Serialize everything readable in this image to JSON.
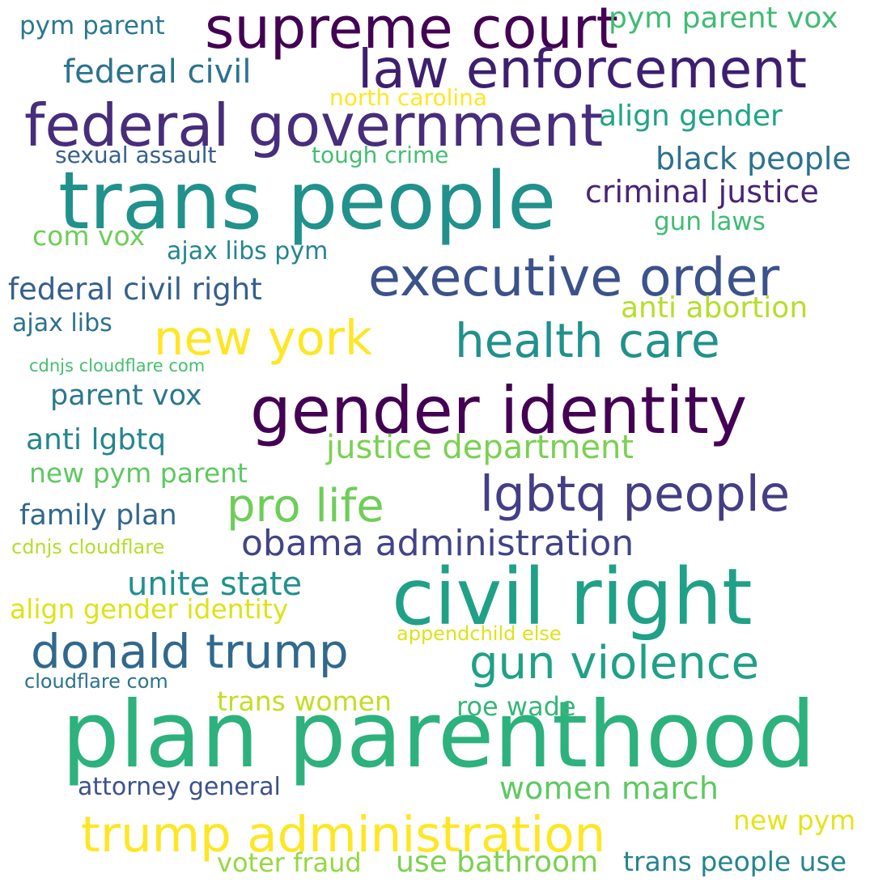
{
  "words": [
    {
      "text": "plan parenthood",
      "color": "#2db27d"
    },
    {
      "text": "trans people",
      "color": "#21918c"
    },
    {
      "text": "civil right",
      "color": "#1fa187"
    },
    {
      "text": "gender identity",
      "color": "#440154"
    },
    {
      "text": "federal government",
      "color": "#472d7b"
    },
    {
      "text": "supreme court",
      "color": "#440154"
    },
    {
      "text": "law enforcement",
      "color": "#3e1f6f"
    },
    {
      "text": "executive order",
      "color": "#3b528b"
    },
    {
      "text": "trump administration",
      "color": "#fde725"
    },
    {
      "text": "lgbtq people",
      "color": "#433e85"
    },
    {
      "text": "new york",
      "color": "#fde725"
    },
    {
      "text": "donald trump",
      "color": "#31688e"
    },
    {
      "text": "health care",
      "color": "#21918c"
    },
    {
      "text": "gun violence",
      "color": "#1fa187"
    },
    {
      "text": "pro life",
      "color": "#6ece58"
    },
    {
      "text": "obama administration",
      "color": "#414487"
    },
    {
      "text": "unite state",
      "color": "#21918c"
    },
    {
      "text": "federal civil",
      "color": "#2c728e"
    },
    {
      "text": "justice department",
      "color": "#7ad151"
    },
    {
      "text": "black people",
      "color": "#2c728e"
    },
    {
      "text": "criminal justice",
      "color": "#482576"
    },
    {
      "text": "women march",
      "color": "#5ec962"
    },
    {
      "text": "federal civil right",
      "color": "#355f8d"
    },
    {
      "text": "pym parent vox",
      "color": "#3fbc73"
    },
    {
      "text": "align gender",
      "color": "#20a486"
    },
    {
      "text": "anti abortion",
      "color": "#b5de2b"
    },
    {
      "text": "use bathroom",
      "color": "#7ad151"
    },
    {
      "text": "anti lgbtq",
      "color": "#25858e"
    },
    {
      "text": "parent vox",
      "color": "#2a788e"
    },
    {
      "text": "family plan",
      "color": "#31688e"
    },
    {
      "text": "trans people use",
      "color": "#25858e"
    },
    {
      "text": "align gender identity",
      "color": "#dde318"
    },
    {
      "text": "new pym parent",
      "color": "#5ec962"
    },
    {
      "text": "trans women",
      "color": "#c2df23"
    },
    {
      "text": "voter fraud",
      "color": "#95d840"
    },
    {
      "text": "attorney general",
      "color": "#3b528b"
    },
    {
      "text": "roe wade",
      "color": "#35b779"
    },
    {
      "text": "new pym",
      "color": "#e5e419"
    },
    {
      "text": "north carolina",
      "color": "#fde725"
    },
    {
      "text": "pym parent",
      "color": "#2a788e"
    },
    {
      "text": "ajax libs pym",
      "color": "#25858e"
    },
    {
      "text": "ajax libs",
      "color": "#2c728e"
    },
    {
      "text": "com vox",
      "color": "#6ece58"
    },
    {
      "text": "gun laws",
      "color": "#3fbc73"
    },
    {
      "text": "sexual assault",
      "color": "#355f8d"
    },
    {
      "text": "tough crime",
      "color": "#44bf70"
    },
    {
      "text": "cdnjs cloudflare com",
      "color": "#44bf70"
    },
    {
      "text": "cdnjs cloudflare",
      "color": "#b5de2b"
    },
    {
      "text": "appendchild else",
      "color": "#dde318"
    },
    {
      "text": "cloudflare com",
      "color": "#2c728e"
    }
  ]
}
